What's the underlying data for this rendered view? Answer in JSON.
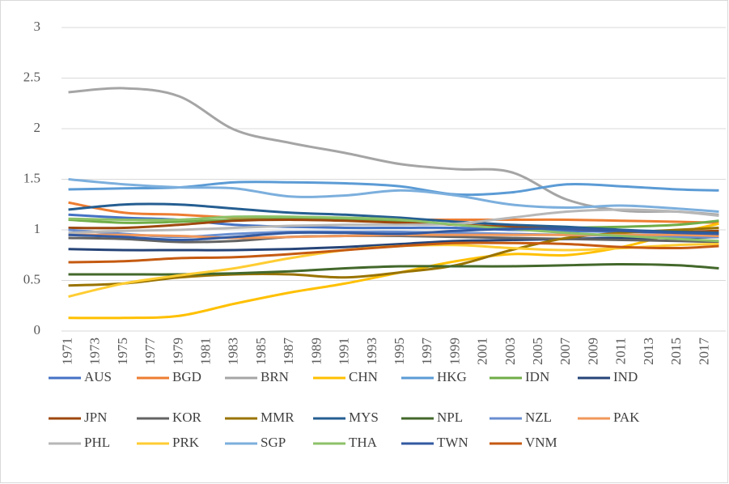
{
  "chart_data": {
    "type": "line",
    "x": [
      1971,
      1975,
      1979,
      1983,
      1987,
      1991,
      1995,
      1999,
      2003,
      2007,
      2011,
      2015,
      2018
    ],
    "xlim": [
      1970.5,
      2018.5
    ],
    "xticks": [
      1971,
      1973,
      1975,
      1977,
      1979,
      1981,
      1983,
      1985,
      1987,
      1989,
      1991,
      1993,
      1995,
      1997,
      1999,
      2001,
      2003,
      2005,
      2007,
      2009,
      2011,
      2013,
      2015,
      2017
    ],
    "ylim": [
      0,
      3
    ],
    "yticks": [
      0,
      0.5,
      1,
      1.5,
      2,
      2.5,
      3
    ],
    "grid": true,
    "legend": "bottom",
    "smooth": true,
    "series": [
      {
        "name": "AUS",
        "color": "#4472C4",
        "values": [
          1.15,
          1.12,
          1.1,
          1.05,
          1.03,
          1.02,
          1.02,
          1.02,
          1.0,
          0.99,
          0.98,
          0.97,
          0.96
        ]
      },
      {
        "name": "BGD",
        "color": "#ED7D31",
        "values": [
          1.27,
          1.17,
          1.15,
          1.12,
          1.1,
          1.1,
          1.1,
          1.1,
          1.1,
          1.1,
          1.09,
          1.08,
          1.07
        ]
      },
      {
        "name": "BRN",
        "color": "#A5A5A5",
        "values": [
          2.36,
          2.4,
          2.32,
          1.99,
          1.86,
          1.76,
          1.65,
          1.6,
          1.57,
          1.3,
          1.19,
          1.18,
          1.15
        ]
      },
      {
        "name": "CHN",
        "color": "#FFC000",
        "values": [
          0.13,
          0.13,
          0.15,
          0.27,
          0.38,
          0.47,
          0.58,
          0.69,
          0.76,
          0.75,
          0.83,
          0.97,
          1.06
        ]
      },
      {
        "name": "HKG",
        "color": "#5B9BD5",
        "values": [
          1.4,
          1.41,
          1.42,
          1.47,
          1.47,
          1.46,
          1.43,
          1.35,
          1.37,
          1.45,
          1.43,
          1.4,
          1.39
        ]
      },
      {
        "name": "IDN",
        "color": "#70AD47",
        "values": [
          1.1,
          1.07,
          1.08,
          1.1,
          1.11,
          1.1,
          1.08,
          1.05,
          1.02,
          1.02,
          1.03,
          1.05,
          1.09
        ]
      },
      {
        "name": "IND",
        "color": "#264478",
        "values": [
          0.81,
          0.8,
          0.8,
          0.8,
          0.81,
          0.83,
          0.86,
          0.89,
          0.9,
          0.91,
          0.92,
          0.92,
          0.93
        ]
      },
      {
        "name": "JPN",
        "color": "#9E480E",
        "values": [
          1.02,
          1.02,
          1.05,
          1.09,
          1.1,
          1.09,
          1.07,
          1.05,
          1.03,
          1.01,
          0.99,
          0.98,
          0.99
        ]
      },
      {
        "name": "KOR",
        "color": "#636363",
        "values": [
          0.92,
          0.91,
          0.88,
          0.89,
          0.93,
          0.94,
          0.94,
          0.93,
          0.92,
          0.91,
          0.9,
          0.89,
          0.88
        ]
      },
      {
        "name": "MMR",
        "color": "#997300",
        "values": [
          0.45,
          0.47,
          0.53,
          0.56,
          0.56,
          0.53,
          0.58,
          0.65,
          0.8,
          0.92,
          0.97,
          1.0,
          1.02
        ]
      },
      {
        "name": "MYS",
        "color": "#255E91",
        "values": [
          1.2,
          1.25,
          1.25,
          1.21,
          1.17,
          1.15,
          1.12,
          1.08,
          1.05,
          1.03,
          1.0,
          0.98,
          0.97
        ]
      },
      {
        "name": "NPL",
        "color": "#43682B",
        "values": [
          0.56,
          0.56,
          0.56,
          0.57,
          0.59,
          0.62,
          0.64,
          0.64,
          0.64,
          0.65,
          0.66,
          0.65,
          0.62
        ]
      },
      {
        "name": "NZL",
        "color": "#698ED0",
        "values": [
          1.0,
          0.96,
          0.93,
          0.96,
          0.98,
          0.98,
          0.98,
          0.97,
          0.96,
          0.95,
          0.94,
          0.93,
          0.93
        ]
      },
      {
        "name": "PAK",
        "color": "#F1975A",
        "values": [
          0.95,
          0.95,
          0.94,
          0.92,
          0.93,
          0.94,
          0.95,
          0.95,
          0.95,
          0.95,
          0.95,
          0.95,
          0.94
        ]
      },
      {
        "name": "PHL",
        "color": "#B7B7B7",
        "values": [
          0.97,
          0.99,
          1.0,
          1.02,
          1.04,
          1.05,
          1.05,
          1.06,
          1.12,
          1.18,
          1.2,
          1.18,
          1.14
        ]
      },
      {
        "name": "PRK",
        "color": "#FFCD33",
        "values": [
          0.34,
          0.47,
          0.55,
          0.62,
          0.72,
          0.8,
          0.84,
          0.85,
          0.82,
          0.8,
          0.82,
          0.85,
          0.86
        ]
      },
      {
        "name": "SGP",
        "color": "#7CAFDD",
        "values": [
          1.5,
          1.45,
          1.42,
          1.41,
          1.33,
          1.34,
          1.39,
          1.34,
          1.25,
          1.22,
          1.24,
          1.21,
          1.18
        ]
      },
      {
        "name": "THA",
        "color": "#8CC168",
        "values": [
          1.11,
          1.1,
          1.1,
          1.13,
          1.13,
          1.12,
          1.1,
          1.05,
          1.01,
          0.97,
          0.94,
          0.91,
          0.89
        ]
      },
      {
        "name": "TWN",
        "color": "#335AA1",
        "values": [
          0.95,
          0.93,
          0.9,
          0.93,
          0.97,
          0.97,
          0.96,
          0.99,
          1.01,
          1.01,
          0.99,
          0.97,
          0.96
        ]
      },
      {
        "name": "VNM",
        "color": "#C55A11",
        "values": [
          0.68,
          0.69,
          0.72,
          0.73,
          0.76,
          0.8,
          0.84,
          0.87,
          0.87,
          0.86,
          0.83,
          0.82,
          0.84
        ]
      }
    ]
  }
}
